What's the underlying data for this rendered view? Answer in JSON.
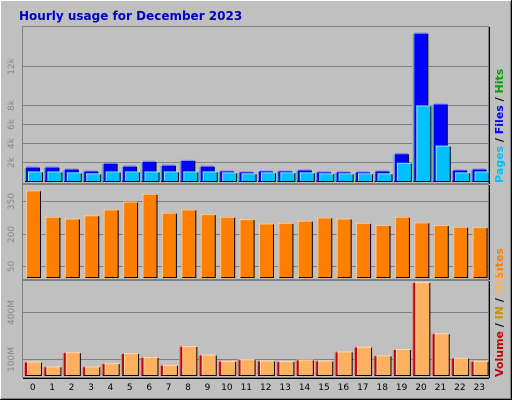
{
  "title": "Hourly usage for December 2023",
  "colors": {
    "background": "#c0c0c0",
    "title": "#0000c0",
    "pages": "#00c0ff",
    "files": "#0000ff",
    "hits": "#00a000",
    "sites": "#ff8000",
    "volume": "#c00000",
    "volume_in": "#ffb060",
    "volume_out": "#cc9000",
    "ticks": "#888888"
  },
  "chart_data": {
    "type": "bar",
    "categories": [
      "0",
      "1",
      "2",
      "3",
      "4",
      "5",
      "6",
      "7",
      "8",
      "9",
      "10",
      "11",
      "12",
      "13",
      "14",
      "15",
      "16",
      "17",
      "18",
      "19",
      "20",
      "21",
      "22",
      "23"
    ],
    "panels": [
      {
        "key": "hits",
        "y_ticks": [
          {
            "v": 2000,
            "label": "2k"
          },
          {
            "v": 4000,
            "label": "4k"
          },
          {
            "v": 6000,
            "label": "6k"
          },
          {
            "v": 8000,
            "label": "8k"
          },
          {
            "v": 12000,
            "label": "12k"
          }
        ],
        "ylim": [
          0,
          16000
        ],
        "legend": [
          {
            "text": "Pages",
            "color": "#00c0ff"
          },
          {
            "text": " / ",
            "color": "#000000"
          },
          {
            "text": "Files",
            "color": "#0000ff"
          },
          {
            "text": " / ",
            "color": "#000000"
          },
          {
            "text": "Hits",
            "color": "#00a000"
          }
        ],
        "series": [
          {
            "name": "Hits",
            "color": "#00a000",
            "values": [
              1500,
              1500,
              1300,
              1100,
              1900,
              1600,
              2100,
              1700,
              2200,
              1600,
              1100,
              1000,
              1100,
              1100,
              1200,
              1000,
              1000,
              1000,
              1100,
              2900,
              15500,
              8100,
              1200,
              1300
            ]
          },
          {
            "name": "Files",
            "color": "#0000ff",
            "values": [
              1500,
              1500,
              1300,
              1100,
              1900,
              1600,
              2100,
              1700,
              2200,
              1600,
              1100,
              1000,
              1100,
              1100,
              1200,
              1000,
              1000,
              1000,
              1100,
              2900,
              15500,
              8100,
              1200,
              1300
            ]
          },
          {
            "name": "Pages",
            "color": "#00c0ff",
            "values": [
              1000,
              1000,
              900,
              800,
              1000,
              1000,
              1000,
              1000,
              1000,
              1000,
              900,
              800,
              900,
              900,
              900,
              800,
              800,
              800,
              800,
              1900,
              7900,
              3700,
              900,
              1000
            ]
          }
        ]
      },
      {
        "key": "sites",
        "y_ticks": [
          {
            "v": 50,
            "label": "50"
          },
          {
            "v": 200,
            "label": "200"
          },
          {
            "v": 350,
            "label": "350"
          }
        ],
        "ylim": [
          0,
          420
        ],
        "legend": [
          {
            "text": "Sites",
            "color": "#ff8000"
          }
        ],
        "series": [
          {
            "name": "Sites",
            "color": "#ff8000",
            "values": [
              400,
              278,
              270,
              285,
              312,
              348,
              384,
              297,
              312,
              290,
              278,
              267,
              247,
              250,
              260,
              275,
              270,
              250,
              240,
              278,
              252,
              240,
              232,
              230
            ]
          }
        ]
      },
      {
        "key": "volume",
        "y_ticks": [
          {
            "v": 100,
            "label": "100M"
          },
          {
            "v": 400,
            "label": "400M"
          }
        ],
        "ylim": [
          0,
          590
        ],
        "legend": [
          {
            "text": "Volume",
            "color": "#c00000"
          },
          {
            "text": " / ",
            "color": "#000000"
          },
          {
            "text": "IN",
            "color": "#cc9000"
          },
          {
            "text": " / ",
            "color": "#000000"
          },
          {
            "text": "OUT",
            "color": "#ffb060"
          }
        ],
        "series": [
          {
            "name": "Volume",
            "color": "#c00000",
            "values": [
              85,
              55,
              145,
              55,
              75,
              140,
              115,
              65,
              185,
              130,
              90,
              100,
              92,
              88,
              98,
              92,
              150,
              180,
              125,
              165,
              590,
              265,
              110,
              90
            ]
          },
          {
            "name": "OUT",
            "color": "#ffb060",
            "values": [
              85,
              55,
              145,
              55,
              75,
              140,
              115,
              65,
              185,
              130,
              90,
              100,
              92,
              88,
              98,
              92,
              150,
              180,
              125,
              165,
              590,
              265,
              110,
              90
            ]
          }
        ]
      }
    ]
  }
}
